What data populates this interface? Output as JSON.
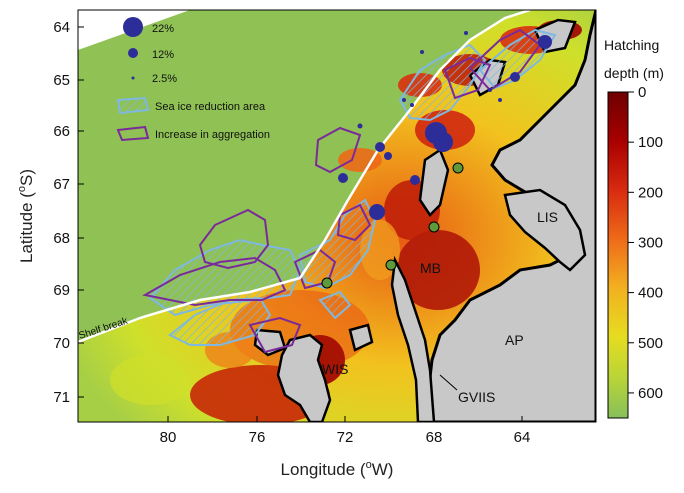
{
  "axes": {
    "x_label": "Longitude (",
    "x_label_sup": "o",
    "x_label_end": "W)",
    "y_label": "Latitude (",
    "y_label_sup": "o",
    "y_label_end": "S)",
    "x_ticks": [
      "80",
      "76",
      "72",
      "68",
      "64"
    ],
    "y_ticks": [
      "64",
      "65",
      "66",
      "67",
      "68",
      "69",
      "70",
      "71"
    ]
  },
  "legend": {
    "size_22": "22%",
    "size_12": "12%",
    "size_2_5": "2.5%",
    "sea_ice": "Sea ice reduction area",
    "aggregation": "Increase in aggregation"
  },
  "colorbar": {
    "title_line1": "Hatching",
    "title_line2": "depth (m)",
    "ticks": [
      "0",
      "100",
      "200",
      "300",
      "400",
      "500",
      "600"
    ],
    "colors": [
      "#7a0000",
      "#a80000",
      "#d82010",
      "#f07818",
      "#f0c020",
      "#d8e020",
      "#a8d040",
      "#88c058"
    ]
  },
  "labels": {
    "lis": "LIS",
    "mb": "MB",
    "ap": "AP",
    "wis": "WIS",
    "gviis": "GVIIS",
    "shelf_break": "Shelf break"
  },
  "colors": {
    "ocean_deep": "#8fc154",
    "land_ice": "#c8c8c8",
    "coast": "#000000",
    "sea_ice_outline": "#7fb8e0",
    "aggregation_outline": "#7a2a9a",
    "bubble": "#2d2d9a",
    "bubble_green": "#5f9a3a"
  }
}
